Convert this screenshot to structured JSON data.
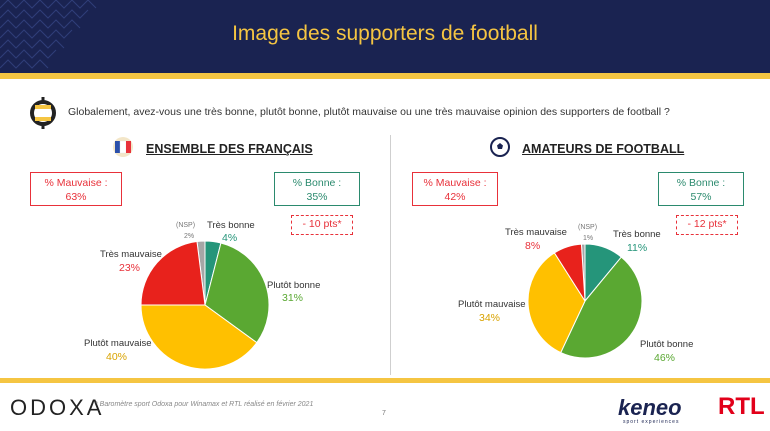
{
  "header": {
    "title": "Image des supporters de football"
  },
  "question": "Globalement, avez-vous une très bonne, plutôt bonne, plutôt mauvaise ou une très mauvaise opinion des supporters de football ?",
  "colors": {
    "navy": "#1a2351",
    "yellow": "#f5c542",
    "red": "#e8313a",
    "green": "#2b8a6e",
    "tres_bonne": "#25957a",
    "plutot_bonne": "#5aa832",
    "plutot_mauvaise": "#ffc000",
    "tres_mauvaise": "#e8221c",
    "nsp": "#a6a6a6"
  },
  "icons": {
    "question": "odoxa-question-icon",
    "flag": "france-flag-icon",
    "ball": "football-icon"
  },
  "chart_data": [
    {
      "type": "pie",
      "title": "ENSEMBLE DES FRANÇAIS",
      "summary": {
        "bad_label": "% Mauvaise :",
        "bad_value": "63%",
        "good_label": "% Bonne :",
        "good_value": "35%",
        "delta": "- 10 pts*"
      },
      "slices": [
        {
          "name": "(NSP)",
          "value": 2,
          "label": "2%"
        },
        {
          "name": "Très bonne",
          "value": 4,
          "label": "4%"
        },
        {
          "name": "Plutôt bonne",
          "value": 31,
          "label": "31%"
        },
        {
          "name": "Plutôt mauvaise",
          "value": 40,
          "label": "40%"
        },
        {
          "name": "Très mauvaise",
          "value": 23,
          "label": "23%"
        }
      ]
    },
    {
      "type": "pie",
      "title": "AMATEURS DE FOOTBALL",
      "summary": {
        "bad_label": "% Mauvaise :",
        "bad_value": "42%",
        "good_label": "% Bonne :",
        "good_value": "57%",
        "delta": "- 12 pts*"
      },
      "slices": [
        {
          "name": "(NSP)",
          "value": 1,
          "label": "1%"
        },
        {
          "name": "Très bonne",
          "value": 11,
          "label": "11%"
        },
        {
          "name": "Plutôt bonne",
          "value": 46,
          "label": "46%"
        },
        {
          "name": "Plutôt mauvaise",
          "value": 34,
          "label": "34%"
        },
        {
          "name": "Très mauvaise",
          "value": 8,
          "label": "8%"
        }
      ]
    }
  ],
  "footer": {
    "logo": "ODOXA",
    "note": "* Baromètre sport Odoxa pour Winamax et RTL réalisé en février 2021",
    "page": "7",
    "partner1": "keneo",
    "partner1_sub": "sport experiences",
    "partner2": "RTL"
  }
}
